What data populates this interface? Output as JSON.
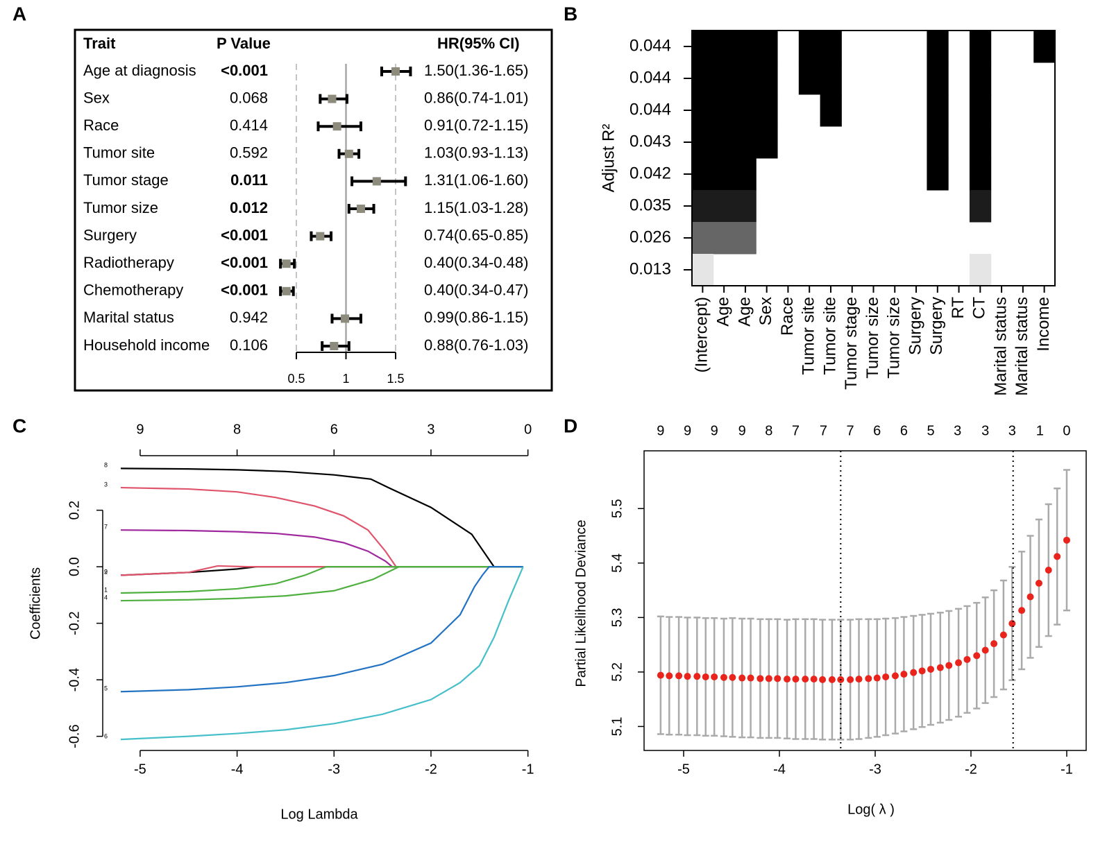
{
  "chart_data": [
    {
      "type": "forest",
      "label": "A",
      "columns": [
        "Trait",
        "P Value",
        "HR(95% CI)"
      ],
      "xlim": [
        0.5,
        1.5
      ],
      "xticks": [
        0.5,
        1,
        1.5
      ],
      "reference": 1,
      "rows": [
        {
          "trait": "Age at diagnosis",
          "p": "<0.001",
          "bold": true,
          "hr": 1.5,
          "lo": 1.36,
          "hi": 1.65,
          "ci_label": "1.50(1.36-1.65)"
        },
        {
          "trait": "Sex",
          "p": "0.068",
          "bold": false,
          "hr": 0.86,
          "lo": 0.74,
          "hi": 1.01,
          "ci_label": "0.86(0.74-1.01)"
        },
        {
          "trait": "Race",
          "p": "0.414",
          "bold": false,
          "hr": 0.91,
          "lo": 0.72,
          "hi": 1.15,
          "ci_label": "0.91(0.72-1.15)"
        },
        {
          "trait": "Tumor site",
          "p": "0.592",
          "bold": false,
          "hr": 1.03,
          "lo": 0.93,
          "hi": 1.13,
          "ci_label": "1.03(0.93-1.13)"
        },
        {
          "trait": "Tumor stage",
          "p": "0.011",
          "bold": true,
          "hr": 1.31,
          "lo": 1.06,
          "hi": 1.6,
          "ci_label": "1.31(1.06-1.60)"
        },
        {
          "trait": "Tumor size",
          "p": "0.012",
          "bold": true,
          "hr": 1.15,
          "lo": 1.03,
          "hi": 1.28,
          "ci_label": "1.15(1.03-1.28)"
        },
        {
          "trait": "Surgery",
          "p": "<0.001",
          "bold": true,
          "hr": 0.74,
          "lo": 0.65,
          "hi": 0.85,
          "ci_label": "0.74(0.65-0.85)"
        },
        {
          "trait": "Radiotherapy",
          "p": "<0.001",
          "bold": true,
          "hr": 0.4,
          "lo": 0.34,
          "hi": 0.48,
          "ci_label": "0.40(0.34-0.48)"
        },
        {
          "trait": "Chemotherapy",
          "p": "<0.001",
          "bold": true,
          "hr": 0.4,
          "lo": 0.34,
          "hi": 0.47,
          "ci_label": "0.40(0.34-0.47)"
        },
        {
          "trait": "Marital status",
          "p": "0.942",
          "bold": false,
          "hr": 0.99,
          "lo": 0.86,
          "hi": 1.15,
          "ci_label": "0.99(0.86-1.15)"
        },
        {
          "trait": "Household income",
          "p": "0.106",
          "bold": false,
          "hr": 0.88,
          "lo": 0.76,
          "hi": 1.03,
          "ci_label": "0.88(0.76-1.03)"
        }
      ]
    },
    {
      "type": "matrix",
      "label": "B",
      "ylabel": "Adjust R²",
      "columns": [
        "(Intercept)",
        "Age",
        "Age",
        "Sex",
        "Race",
        "Tumor site",
        "Tumor site",
        "Tumor stage",
        "Tumor size",
        "Tumor size",
        "Surgery",
        "Surgery",
        "RT",
        "CT",
        "Marital status",
        "Marital status",
        "Income"
      ],
      "rows": [
        {
          "adj_r2": 0.044,
          "color": "#000000",
          "included": [
            1,
            1,
            1,
            1,
            0,
            1,
            1,
            0,
            0,
            0,
            0,
            1,
            0,
            1,
            0,
            0,
            1
          ]
        },
        {
          "adj_r2": 0.044,
          "color": "#000000",
          "included": [
            1,
            1,
            1,
            1,
            0,
            1,
            1,
            0,
            0,
            0,
            0,
            1,
            0,
            1,
            0,
            0,
            0
          ]
        },
        {
          "adj_r2": 0.044,
          "color": "#000000",
          "included": [
            1,
            1,
            1,
            1,
            0,
            0,
            1,
            0,
            0,
            0,
            0,
            1,
            0,
            1,
            0,
            0,
            0
          ]
        },
        {
          "adj_r2": 0.043,
          "color": "#000000",
          "included": [
            1,
            1,
            1,
            1,
            0,
            0,
            0,
            0,
            0,
            0,
            0,
            1,
            0,
            1,
            0,
            0,
            0
          ]
        },
        {
          "adj_r2": 0.042,
          "color": "#000000",
          "included": [
            1,
            1,
            1,
            0,
            0,
            0,
            0,
            0,
            0,
            0,
            0,
            1,
            0,
            1,
            0,
            0,
            0
          ]
        },
        {
          "adj_r2": 0.035,
          "color": "#1c1c1c",
          "included": [
            1,
            1,
            1,
            0,
            0,
            0,
            0,
            0,
            0,
            0,
            0,
            0,
            0,
            1,
            0,
            0,
            0
          ]
        },
        {
          "adj_r2": 0.026,
          "color": "#666666",
          "included": [
            1,
            1,
            1,
            0,
            0,
            0,
            0,
            0,
            0,
            0,
            0,
            0,
            0,
            0,
            0,
            0,
            0
          ]
        },
        {
          "adj_r2": 0.013,
          "color": "#e5e5e5",
          "included": [
            1,
            0,
            0,
            0,
            0,
            0,
            0,
            0,
            0,
            0,
            0,
            0,
            0,
            1,
            0,
            0,
            0
          ]
        }
      ]
    },
    {
      "type": "line",
      "label": "C",
      "xlabel": "Log Lambda",
      "ylabel": "Coefficients",
      "xlim": [
        -5.386,
        -0.79
      ],
      "ylim": [
        -0.65,
        0.393
      ],
      "xticks": [
        -5,
        -4,
        -3,
        -2,
        -1
      ],
      "yticks": [
        -0.6,
        -0.4,
        -0.2,
        {
          "value": 0,
          "label": "0.0"
        },
        0.2
      ],
      "top_ticks": [
        {
          "value": -5,
          "label": "9"
        },
        {
          "value": -4,
          "label": "8"
        },
        {
          "value": -3,
          "label": "6"
        },
        {
          "value": -2,
          "label": "3"
        },
        {
          "value": -1,
          "label": "0"
        }
      ],
      "series": [
        {
          "name": "8",
          "color": "#000000",
          "x": [
            -5.2,
            -4.5,
            -4,
            -3.5,
            -3,
            -2.62,
            -2.44,
            -2,
            -1.58,
            -1.35,
            -1.05
          ],
          "values": [
            0.348,
            0.346,
            0.343,
            0.337,
            0.325,
            0.31,
            0.28,
            0.21,
            0.115,
            0,
            0
          ]
        },
        {
          "name": "3",
          "color": "#df536b",
          "x": [
            -5.2,
            -4.5,
            -4,
            -3.6,
            -3.2,
            -2.9,
            -2.65,
            -2.47,
            -2.36,
            -1.05
          ],
          "values": [
            0.28,
            0.275,
            0.265,
            0.245,
            0.215,
            0.18,
            0.13,
            0.055,
            0,
            0
          ]
        },
        {
          "name": "7",
          "color": "#a0289e",
          "x": [
            -5.2,
            -4.5,
            -4,
            -3.6,
            -3.2,
            -2.9,
            -2.65,
            -2.47,
            -2.4,
            -1.05
          ],
          "values": [
            0.13,
            0.128,
            0.124,
            0.118,
            0.105,
            0.085,
            0.055,
            0.02,
            0,
            0
          ]
        },
        {
          "name": "2",
          "color": "#000000",
          "x": [
            -5.2,
            -4.5,
            -4,
            -3.8,
            -1.05
          ],
          "values": [
            -0.03,
            -0.02,
            -0.008,
            0,
            0
          ]
        },
        {
          "name": "9",
          "color": "#df536b",
          "x": [
            -5.2,
            -4.5,
            -4.2,
            -3.9,
            -1.05
          ],
          "values": [
            -0.03,
            -0.02,
            0.003,
            0,
            0
          ]
        },
        {
          "name": "1",
          "color": "#4fb040",
          "x": [
            -5.2,
            -4.5,
            -4,
            -3.6,
            -3.3,
            -3.08,
            -1.05
          ],
          "values": [
            -0.093,
            -0.088,
            -0.078,
            -0.06,
            -0.03,
            0,
            0
          ]
        },
        {
          "name": "4",
          "color": "#4fb040",
          "x": [
            -5.2,
            -4.5,
            -4,
            -3.5,
            -3,
            -2.6,
            -2.33,
            -1.05
          ],
          "values": [
            -0.12,
            -0.117,
            -0.112,
            -0.103,
            -0.085,
            -0.045,
            0,
            0
          ]
        },
        {
          "name": "5",
          "color": "#2272c3",
          "x": [
            -5.2,
            -4.5,
            -4,
            -3.5,
            -3,
            -2.5,
            -2,
            -1.7,
            -1.55,
            -1.47,
            -1.4,
            -1.05
          ],
          "values": [
            -0.442,
            -0.435,
            -0.425,
            -0.41,
            -0.385,
            -0.345,
            -0.27,
            -0.17,
            -0.07,
            -0.03,
            0,
            0
          ]
        },
        {
          "name": "6",
          "color": "#45bfca",
          "x": [
            -5.2,
            -4.5,
            -4,
            -3.5,
            -3,
            -2.5,
            -2,
            -1.7,
            -1.5,
            -1.35,
            -1.2,
            -1.05
          ],
          "values": [
            -0.611,
            -0.6,
            -0.59,
            -0.577,
            -0.555,
            -0.522,
            -0.47,
            -0.41,
            -0.35,
            -0.25,
            -0.12,
            0
          ]
        }
      ]
    },
    {
      "type": "errorbar",
      "label": "D",
      "xlabel": "Log( λ )",
      "ylabel": "Partial Likelihood Deviance",
      "xlim": [
        -5.413,
        -0.797
      ],
      "ylim": [
        5.056,
        5.606
      ],
      "xticks": [
        -5,
        -4,
        -3,
        -2,
        -1
      ],
      "yticks": [
        5.1,
        5.2,
        5.3,
        5.4,
        5.5
      ],
      "top_ticks": [
        {
          "value": -5.24,
          "label": "9"
        },
        {
          "value": -4.96,
          "label": "9"
        },
        {
          "value": -4.68,
          "label": "9"
        },
        {
          "value": -4.39,
          "label": "9"
        },
        {
          "value": -4.11,
          "label": "8"
        },
        {
          "value": -3.83,
          "label": "7"
        },
        {
          "value": -3.54,
          "label": "7"
        },
        {
          "value": -3.26,
          "label": "7"
        },
        {
          "value": -2.98,
          "label": "6"
        },
        {
          "value": -2.7,
          "label": "6"
        },
        {
          "value": -2.42,
          "label": "5"
        },
        {
          "value": -2.14,
          "label": "3"
        },
        {
          "value": -1.85,
          "label": "3"
        },
        {
          "value": -1.57,
          "label": "3"
        },
        {
          "value": -1.28,
          "label": "1"
        },
        {
          "value": -1.0,
          "label": "0"
        }
      ],
      "vlines": [
        -3.36,
        -1.56
      ],
      "color": "#e8241c",
      "bar_color": "#aaaaaa",
      "x": [
        -5.24,
        -5.15,
        -5.05,
        -4.96,
        -4.86,
        -4.77,
        -4.68,
        -4.58,
        -4.49,
        -4.39,
        -4.3,
        -4.2,
        -4.11,
        -4.02,
        -3.92,
        -3.83,
        -3.73,
        -3.64,
        -3.55,
        -3.45,
        -3.36,
        -3.26,
        -3.17,
        -3.07,
        -2.98,
        -2.89,
        -2.79,
        -2.7,
        -2.6,
        -2.51,
        -2.42,
        -2.32,
        -2.23,
        -2.13,
        -2.04,
        -1.94,
        -1.85,
        -1.76,
        -1.66,
        -1.57,
        -1.47,
        -1.38,
        -1.29,
        -1.19,
        -1.1,
        -1.0
      ],
      "values": [
        5.194,
        5.193,
        5.193,
        5.192,
        5.192,
        5.191,
        5.191,
        5.19,
        5.19,
        5.189,
        5.189,
        5.188,
        5.188,
        5.188,
        5.187,
        5.187,
        5.187,
        5.187,
        5.186,
        5.186,
        5.186,
        5.186,
        5.187,
        5.188,
        5.189,
        5.191,
        5.193,
        5.196,
        5.199,
        5.202,
        5.205,
        5.208,
        5.212,
        5.217,
        5.223,
        5.23,
        5.24,
        5.252,
        5.268,
        5.289,
        5.313,
        5.338,
        5.363,
        5.387,
        5.412,
        5.442
      ],
      "errors": [
        0.108,
        0.108,
        0.108,
        0.108,
        0.108,
        0.108,
        0.108,
        0.108,
        0.109,
        0.109,
        0.109,
        0.109,
        0.109,
        0.109,
        0.109,
        0.11,
        0.11,
        0.11,
        0.11,
        0.11,
        0.11,
        0.11,
        0.11,
        0.109,
        0.108,
        0.107,
        0.106,
        0.105,
        0.104,
        0.103,
        0.102,
        0.101,
        0.1,
        0.099,
        0.098,
        0.097,
        0.097,
        0.098,
        0.1,
        0.104,
        0.108,
        0.112,
        0.117,
        0.121,
        0.125,
        0.129
      ]
    }
  ]
}
